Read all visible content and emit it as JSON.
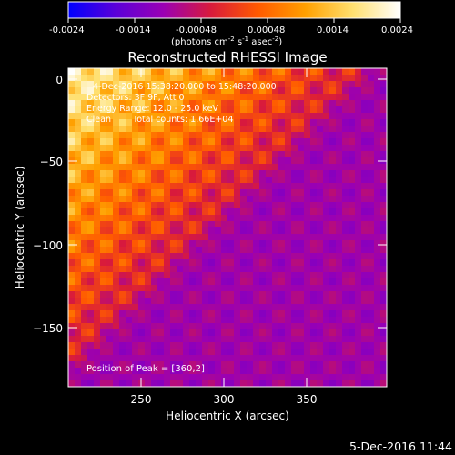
{
  "colorbar": {
    "ticks": [
      "-0.0024",
      "-0.0014",
      "-0.00048",
      "0.00048",
      "0.0014",
      "0.0024"
    ],
    "units_prefix": "(photons cm",
    "units_exp1": "-2",
    "units_mid": " s",
    "units_exp2": "-1",
    "units_mid2": " asec",
    "units_exp3": "-2",
    "units_suffix": ")",
    "colors": [
      "#0000ff",
      "#5a00d8",
      "#9a00b4",
      "#d81a3c",
      "#ff5a00",
      "#ffa000",
      "#ffe070",
      "#ffffff"
    ]
  },
  "title": "Reconstructed RHESSI Image",
  "annotations": {
    "line1": "4-Dec-2016 15:38:20.000 to 15:48:20.000",
    "line2": "Detectors: 3F 9F, Att 0",
    "line3": "Energy Range: 12.0 - 25.0 keV",
    "line4_a": "Clean",
    "line4_b": "Total counts: 1.66E+04",
    "peak": "Position of Peak = [360,2]"
  },
  "axes": {
    "xlabel": "Heliocentric X (arcsec)",
    "ylabel": "Heliocentric Y (arcsec)",
    "x_ticks": [
      "250",
      "300",
      "350"
    ],
    "y_ticks": [
      "0",
      "−50",
      "−100",
      "−150"
    ]
  },
  "timestamp": "5-Dec-2016 11:44"
}
